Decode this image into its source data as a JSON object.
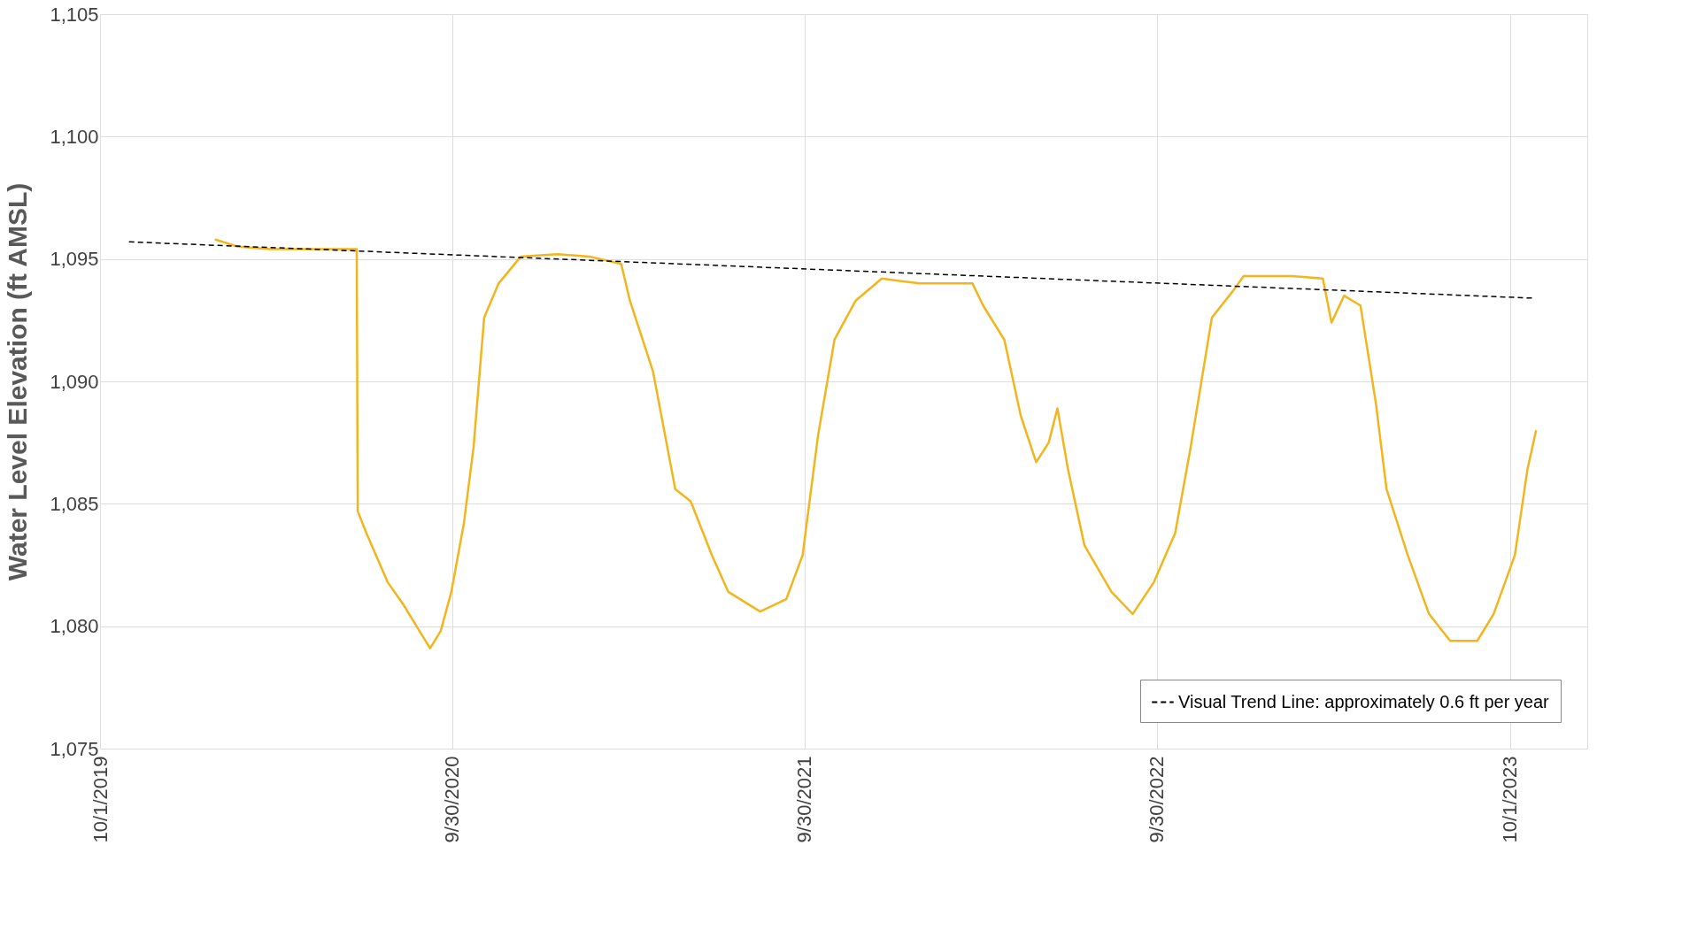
{
  "chart_data": {
    "type": "line",
    "ylabel": "Water Level Elevation (ft AMSL)",
    "xlim": [
      "2019-10-01",
      "2023-12-20"
    ],
    "ylim": [
      1075,
      1105
    ],
    "xticks": [
      {
        "value": "2019-10-01",
        "label": "10/1/2019"
      },
      {
        "value": "2020-09-30",
        "label": "9/30/2020"
      },
      {
        "value": "2021-09-30",
        "label": "9/30/2021"
      },
      {
        "value": "2022-09-30",
        "label": "9/30/2022"
      },
      {
        "value": "2023-10-01",
        "label": "10/1/2023"
      }
    ],
    "yticks": [
      {
        "value": 1075,
        "label": "1,075"
      },
      {
        "value": 1080,
        "label": "1,080"
      },
      {
        "value": 1085,
        "label": "1,085"
      },
      {
        "value": 1090,
        "label": "1,090"
      },
      {
        "value": 1095,
        "label": "1,095"
      },
      {
        "value": 1100,
        "label": "1,100"
      },
      {
        "value": 1105,
        "label": "1,105"
      }
    ],
    "grid": true,
    "legend": "bottom right",
    "marker": "none",
    "series": [
      {
        "color": "#f2b51d",
        "line_style": "solid",
        "x": [
          "2020-01-28",
          "2020-02-21",
          "2020-03-25",
          "2020-06-23",
          "2020-06-24",
          "2020-07-03",
          "2020-07-25",
          "2020-08-10",
          "2020-08-27",
          "2020-09-07",
          "2020-09-18",
          "2020-09-29",
          "2020-10-12",
          "2020-10-22",
          "2020-11-02",
          "2020-11-17",
          "2020-12-10",
          "2021-01-17",
          "2021-02-19",
          "2021-03-24",
          "2021-04-02",
          "2021-04-26",
          "2021-05-19",
          "2021-06-04",
          "2021-06-26",
          "2021-07-13",
          "2021-08-15",
          "2021-09-11",
          "2021-09-28",
          "2021-10-14",
          "2021-10-31",
          "2021-11-22",
          "2021-12-19",
          "2022-01-27",
          "2022-03-23",
          "2022-04-03",
          "2022-04-25",
          "2022-05-12",
          "2022-05-28",
          "2022-06-10",
          "2022-06-19",
          "2022-06-30",
          "2022-07-17",
          "2022-08-14",
          "2022-09-05",
          "2022-09-27",
          "2022-10-19",
          "2022-11-04",
          "2022-11-26",
          "2022-12-18",
          "2022-12-29",
          "2023-02-17",
          "2023-03-21",
          "2023-03-30",
          "2023-04-12",
          "2023-04-29",
          "2023-05-15",
          "2023-05-26",
          "2023-06-17",
          "2023-07-09",
          "2023-07-31",
          "2023-08-28",
          "2023-09-14",
          "2023-10-06",
          "2023-10-19",
          "2023-10-28"
        ],
        "values": [
          1095.8,
          1095.5,
          1095.4,
          1095.4,
          1084.7,
          1083.8,
          1081.8,
          1080.9,
          1079.8,
          1079.1,
          1079.8,
          1081.4,
          1084.2,
          1087.3,
          1092.6,
          1094.0,
          1095.1,
          1095.2,
          1095.1,
          1094.8,
          1093.3,
          1090.4,
          1085.6,
          1085.1,
          1082.9,
          1081.4,
          1080.6,
          1081.1,
          1082.9,
          1087.8,
          1091.7,
          1093.3,
          1094.2,
          1094.0,
          1094.0,
          1093.1,
          1091.7,
          1088.6,
          1086.7,
          1087.5,
          1088.9,
          1086.4,
          1083.3,
          1081.4,
          1080.5,
          1081.8,
          1083.8,
          1087.3,
          1092.6,
          1093.7,
          1094.3,
          1094.3,
          1094.2,
          1092.4,
          1093.5,
          1093.1,
          1089.1,
          1085.6,
          1082.9,
          1080.5,
          1079.4,
          1079.4,
          1080.5,
          1082.9,
          1086.4,
          1088.0
        ]
      },
      {
        "name": "Visual Trend Line: approximately 0.6 ft per year",
        "color": "#000000",
        "line_style": "dashed",
        "x": [
          "2019-10-31",
          "2023-10-25"
        ],
        "values": [
          1095.7,
          1093.4
        ]
      }
    ]
  }
}
